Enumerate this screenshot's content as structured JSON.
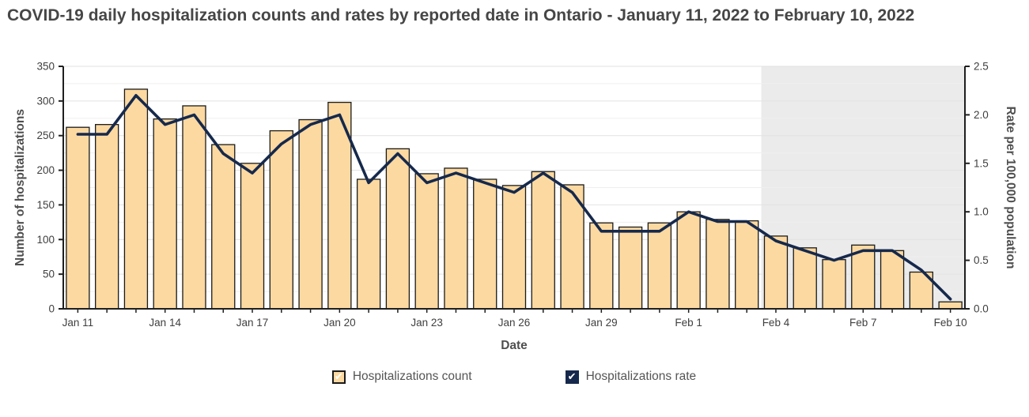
{
  "title": "COVID-19 daily hospitalization counts and rates by reported date in Ontario - January 11, 2022 to February 10, 2022",
  "chart_data": {
    "type": "bar",
    "subtype": "bar+line dual axis",
    "categories": [
      "Jan 11",
      "Jan 12",
      "Jan 13",
      "Jan 14",
      "Jan 15",
      "Jan 16",
      "Jan 17",
      "Jan 18",
      "Jan 19",
      "Jan 20",
      "Jan 21",
      "Jan 22",
      "Jan 23",
      "Jan 24",
      "Jan 25",
      "Jan 26",
      "Jan 27",
      "Jan 28",
      "Jan 29",
      "Jan 30",
      "Jan 31",
      "Feb 1",
      "Feb 2",
      "Feb 3",
      "Feb 4",
      "Feb 5",
      "Feb 6",
      "Feb 7",
      "Feb 8",
      "Feb 9",
      "Feb 10"
    ],
    "series": [
      {
        "name": "Hospitalizations count",
        "kind": "bar",
        "axis": "left",
        "color": "#fcd9a1",
        "stroke": "#1a1a1a",
        "values": [
          262,
          266,
          317,
          274,
          293,
          237,
          210,
          257,
          273,
          298,
          187,
          231,
          195,
          203,
          187,
          178,
          198,
          179,
          124,
          118,
          124,
          140,
          129,
          127,
          105,
          88,
          71,
          92,
          84,
          53,
          10
        ]
      },
      {
        "name": "Hospitalizations rate",
        "kind": "line",
        "axis": "right",
        "color": "#16294c",
        "values": [
          1.8,
          1.8,
          2.2,
          1.9,
          2.0,
          1.6,
          1.4,
          1.7,
          1.9,
          2.0,
          1.3,
          1.6,
          1.3,
          1.4,
          1.3,
          1.2,
          1.4,
          1.2,
          0.8,
          0.8,
          0.8,
          1.0,
          0.9,
          0.9,
          0.7,
          0.6,
          0.5,
          0.6,
          0.6,
          0.4,
          0.1
        ]
      }
    ],
    "xlabel": "Date",
    "ylabel_left": "Number of hospitalizations",
    "ylabel_right": "Rate per 100,000 population",
    "ylim_left": [
      0,
      350
    ],
    "ylim_right": [
      0,
      2.5
    ],
    "yticks_left": [
      0,
      50,
      100,
      150,
      200,
      250,
      300,
      350
    ],
    "yticks_right": [
      0.0,
      0.5,
      1.0,
      1.5,
      2.0,
      2.5
    ],
    "xtick_label_every": 3,
    "grid": true,
    "grid_minor_step": 25,
    "shaded_region": {
      "from_category": "Feb 4",
      "to_category": "Feb 10",
      "color": "#ebebeb"
    },
    "legend_position": "bottom"
  },
  "legend": {
    "items": [
      {
        "label": "Hospitalizations count",
        "color": "#fcd9a1",
        "checked": true,
        "check_glyph": "✔"
      },
      {
        "label": "Hospitalizations rate",
        "color": "#16294c",
        "checked": true,
        "check_glyph": "✔"
      }
    ]
  },
  "colors": {
    "bar_fill": "#fcd9a1",
    "bar_stroke": "#1a1a1a",
    "line": "#16294c",
    "shaded_region": "#ebebeb",
    "axis": "#1f1f1f",
    "grid_major": "#e2e2e2",
    "grid_minor": "#efefef",
    "tick_label": "#3f3f3f",
    "axis_title": "#4f4f4f",
    "title": "#464646"
  }
}
